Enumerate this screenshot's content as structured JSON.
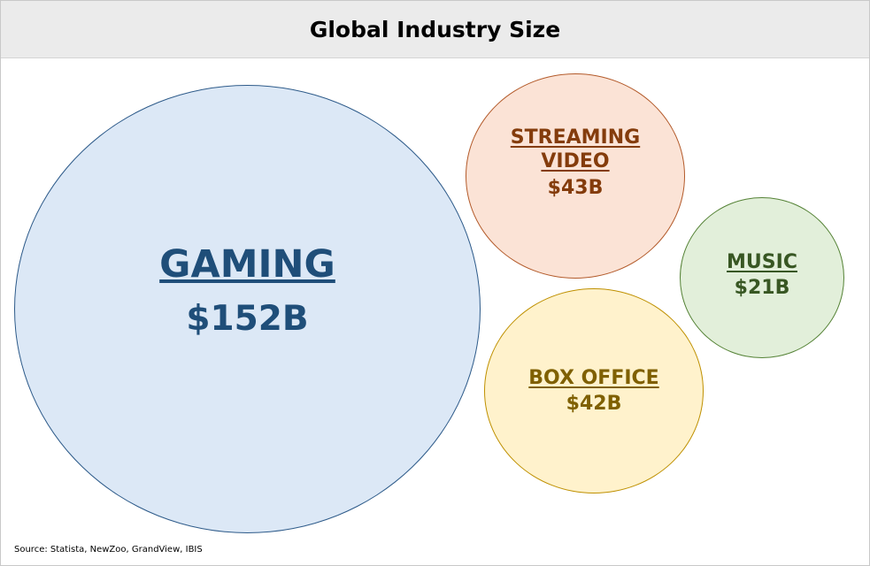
{
  "chart_data": {
    "type": "bubble",
    "title": "Global Industry Size",
    "unit": "$B",
    "categories": [
      "GAMING",
      "STREAMING VIDEO",
      "MUSIC",
      "BOX OFFICE"
    ],
    "values": [
      152,
      43,
      21,
      42
    ],
    "value_labels": [
      "$152B",
      "$43B",
      "$21B",
      "$42B"
    ],
    "colors": {
      "GAMING": {
        "fill": "#dce8f6",
        "stroke": "#2e5b8a",
        "text": "#1f4e79"
      },
      "STREAMING VIDEO": {
        "fill": "#fbe3d6",
        "stroke": "#b35a2a",
        "text": "#843c0c"
      },
      "MUSIC": {
        "fill": "#e2efda",
        "stroke": "#548235",
        "text": "#385723"
      },
      "BOX OFFICE": {
        "fill": "#fff2cc",
        "stroke": "#bf9000",
        "text": "#7f6000"
      }
    },
    "legend": "none",
    "grid": false
  },
  "source_note": "Source: Statista, NewZoo, GrandView, IBIS"
}
